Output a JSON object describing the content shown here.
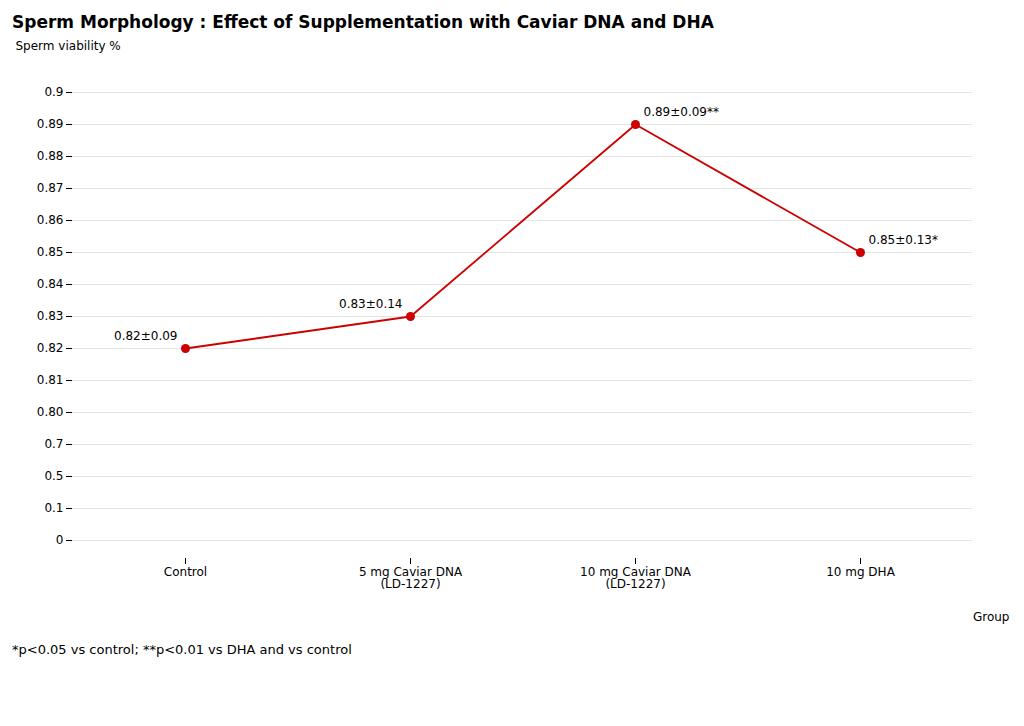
{
  "chart_data": {
    "type": "line",
    "title": "Sperm Morphology : Effect of Supplementation with Caviar DNA and DHA",
    "caption": "*p<0.05 vs control; **p<0.01 vs DHA and vs control",
    "xlabel": "Group",
    "ylabel": "Sperm viability %",
    "categories": [
      "Control",
      "5 mg Caviar DNA\n(LD-1227)",
      "10 mg Caviar DNA\n(LD-1227)",
      "10 mg DHA"
    ],
    "values": [
      0.82,
      0.83,
      0.89,
      0.85
    ],
    "annotations": [
      "0.82±0.09",
      "0.83±0.14",
      "0.89±0.09**",
      "0.85±0.13*"
    ],
    "color": "#cc0000",
    "marker": "circle",
    "yticks": [
      0.9,
      0.89,
      0.88,
      0.87,
      0.86,
      0.85,
      0.84,
      0.83,
      0.82,
      0.81,
      {
        "value": 0.8,
        "label": "0.80"
      },
      0.7,
      0.5,
      0.1,
      0
    ],
    "grid": true
  }
}
